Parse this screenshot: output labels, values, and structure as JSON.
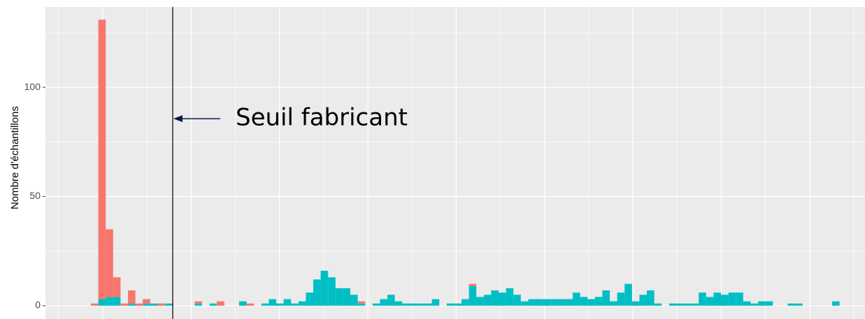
{
  "chart_data": {
    "type": "histogram",
    "ylabel": "Nombre d'échantillons",
    "bins": [
      0,
      1,
      2,
      3,
      4,
      5,
      6,
      7,
      8,
      9,
      10,
      11,
      12,
      13,
      14,
      15,
      16,
      17,
      18,
      19,
      20,
      21,
      22,
      23,
      24,
      25,
      26,
      27,
      28,
      29,
      30,
      31,
      32,
      33,
      34,
      35,
      36,
      37,
      38,
      39,
      40,
      41,
      42,
      43,
      44,
      45,
      46,
      47,
      48,
      49,
      50,
      51,
      52,
      53,
      54,
      55,
      56,
      57,
      58,
      59,
      60,
      61,
      62,
      63,
      64,
      65,
      66,
      67,
      68,
      69,
      70,
      71,
      72,
      73,
      74,
      75,
      76,
      77,
      78,
      79,
      80,
      81,
      82,
      83,
      84,
      85,
      86,
      87,
      88,
      89,
      90,
      91,
      92,
      93,
      94,
      95,
      96,
      97,
      98,
      99,
      100,
      101
    ],
    "stacked": true,
    "series": [
      {
        "color": "#00BFC4",
        "values": [
          0,
          3,
          4,
          4,
          0,
          1,
          0,
          1,
          1,
          0,
          1,
          0,
          0,
          0,
          1,
          0,
          1,
          0,
          0,
          0,
          2,
          0,
          0,
          1,
          3,
          1,
          3,
          1,
          2,
          6,
          12,
          16,
          13,
          8,
          8,
          5,
          1,
          0,
          1,
          3,
          5,
          2,
          1,
          1,
          1,
          1,
          3,
          0,
          1,
          1,
          3,
          9,
          4,
          5,
          7,
          6,
          8,
          5,
          2,
          3,
          3,
          3,
          3,
          3,
          3,
          6,
          4,
          3,
          4,
          7,
          2,
          6,
          10,
          2,
          5,
          7,
          1,
          0,
          1,
          1,
          1,
          1,
          6,
          4,
          6,
          5,
          6,
          6,
          2,
          1,
          2,
          2,
          0,
          0,
          1,
          1,
          0,
          0,
          0,
          0,
          2
        ]
      },
      {
        "color": "#F8766D",
        "values": [
          1,
          128,
          31,
          9,
          1,
          6,
          1,
          2,
          0,
          1,
          0,
          0,
          0,
          0,
          1,
          0,
          0,
          2,
          0,
          0,
          0,
          1,
          0,
          0,
          0,
          0,
          0,
          0,
          0,
          0,
          0,
          0,
          0,
          0,
          0,
          0,
          1,
          0,
          0,
          0,
          0,
          0,
          0,
          0,
          0,
          0,
          0,
          0,
          0,
          0,
          0,
          1,
          0,
          0,
          0,
          0,
          0,
          0,
          0,
          0,
          0,
          0,
          0,
          0,
          0,
          0,
          0,
          0,
          0,
          0,
          0,
          0,
          0,
          0,
          0,
          0,
          0,
          0,
          0,
          0,
          0,
          0,
          0,
          0,
          0,
          0,
          0,
          0,
          0,
          0,
          0,
          0,
          0,
          0,
          0,
          0,
          0,
          0,
          0,
          0,
          0
        ]
      }
    ],
    "xlim": [
      -6.13,
      104.43
    ],
    "xticks": [
      1.6,
      13.52,
      25.44,
      37.36,
      49.28,
      61.2,
      73.12,
      85.04,
      96.96
    ],
    "xminorticks": [
      -4.36,
      7.56,
      19.48,
      31.4,
      43.32,
      55.24,
      67.16,
      79.08,
      91.0,
      102.92
    ],
    "ylim": [
      -6.1,
      136.8
    ],
    "yticks": [
      0,
      50,
      100
    ],
    "yminorticks": [
      25,
      75,
      125
    ],
    "grid": true,
    "threshold": {
      "x": 11.04,
      "label": "Seuil fabricant"
    }
  }
}
